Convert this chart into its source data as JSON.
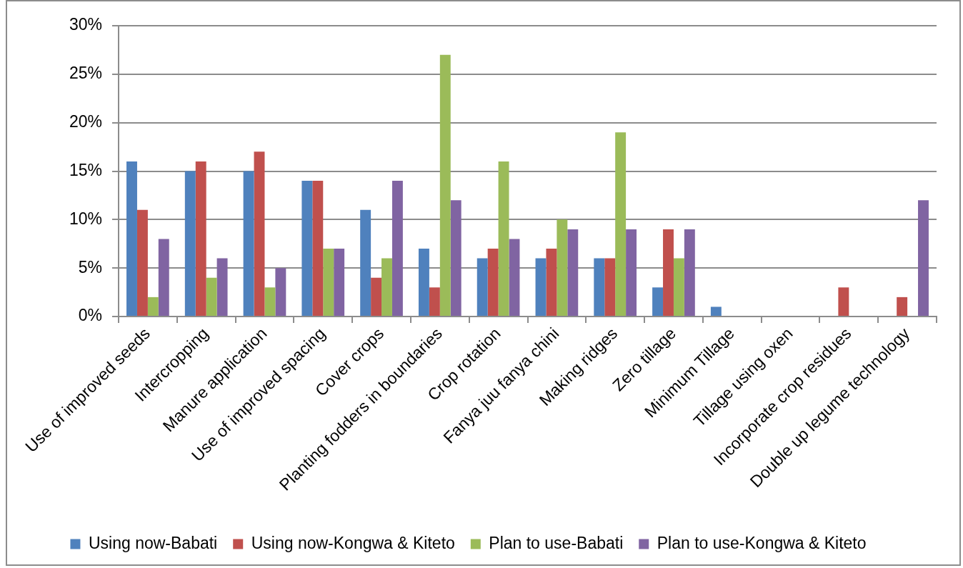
{
  "chart_data": {
    "type": "bar",
    "categories": [
      "Use of improved seeds",
      "Intercropping",
      "Manure application",
      "Use of improved spacing",
      "Cover crops",
      "Planting fodders in boundaries",
      "Crop rotation",
      "Fanya juu fanya chini",
      "Making ridges",
      "Zero tillage",
      "Minimum Tillage",
      "Tillage using oxen",
      "Incorporate crop residues",
      "Double up legume technology"
    ],
    "series": [
      {
        "name": "Using now-Babati",
        "color": "#4f81bd",
        "values": [
          16,
          15,
          15,
          14,
          11,
          7,
          6,
          6,
          6,
          3,
          1,
          0,
          0,
          0
        ]
      },
      {
        "name": "Using now-Kongwa & Kiteto",
        "color": "#c0504d",
        "values": [
          11,
          16,
          17,
          14,
          4,
          3,
          7,
          7,
          6,
          9,
          0,
          0,
          3,
          2
        ]
      },
      {
        "name": "Plan to use-Babati",
        "color": "#9bbb59",
        "values": [
          2,
          4,
          3,
          7,
          6,
          27,
          16,
          10,
          19,
          6,
          0,
          0,
          0,
          0
        ]
      },
      {
        "name": "Plan to use-Kongwa & Kiteto",
        "color": "#8064a2",
        "values": [
          8,
          6,
          5,
          7,
          14,
          12,
          8,
          9,
          9,
          9,
          0,
          0,
          0,
          12
        ]
      }
    ],
    "ylim": [
      0,
      30
    ],
    "yticks": [
      {
        "value": 0,
        "label": "0%"
      },
      {
        "value": 5,
        "label": "5%"
      },
      {
        "value": 10,
        "label": "10%"
      },
      {
        "value": 15,
        "label": "15%"
      },
      {
        "value": 20,
        "label": "20%"
      },
      {
        "value": 25,
        "label": "25%"
      },
      {
        "value": 30,
        "label": "30%"
      }
    ],
    "grid": "y",
    "legend": "bottom"
  }
}
